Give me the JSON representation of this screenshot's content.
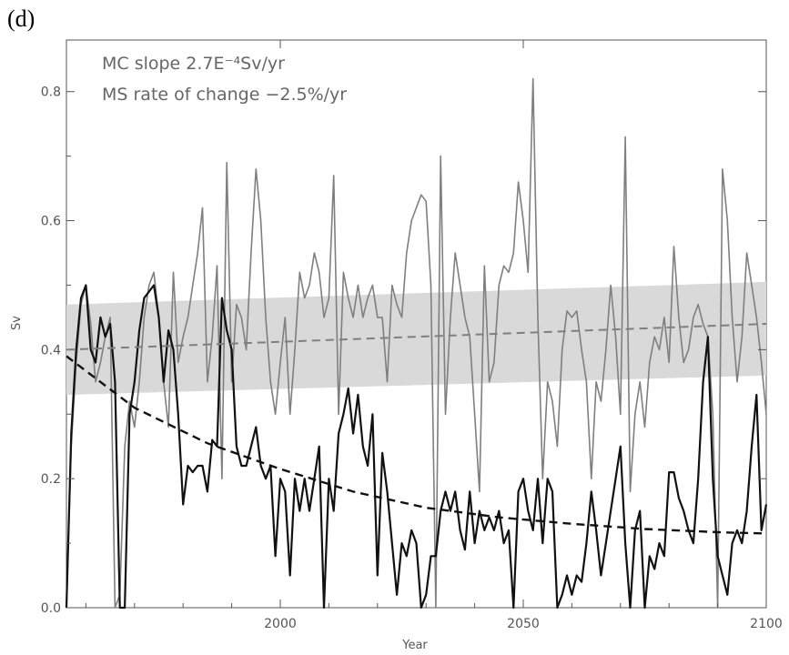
{
  "panel_label": "(d)",
  "colors": {
    "band": "#d9d9d9",
    "gray_series": "#7f7f7f",
    "black_series": "#111111",
    "axis": "#555555"
  },
  "chart_data": {
    "type": "line",
    "xlabel": "Year",
    "ylabel": "Sv",
    "xlim": [
      1956,
      2100
    ],
    "ylim": [
      0.0,
      0.88
    ],
    "x_ticks": [
      2000,
      2050,
      2100
    ],
    "y_ticks": [
      0.0,
      0.2,
      0.4,
      0.6,
      0.8
    ],
    "x_tick_labels": [
      "2000",
      "2050",
      "2100"
    ],
    "y_tick_labels": [
      "0.0",
      "0.2",
      "0.4",
      "0.6",
      "0.8"
    ],
    "annotations": [
      "MC slope 2.7E⁻⁴Sv/yr",
      "MS rate of change −2.5%/yr"
    ],
    "band": {
      "x": [
        1956,
        2100
      ],
      "lower": [
        0.33,
        0.36
      ],
      "upper": [
        0.47,
        0.505
      ]
    },
    "trend_lines": [
      {
        "style": "dashed",
        "color": "gray",
        "x": [
          1956,
          2100
        ],
        "y": [
          0.4,
          0.44
        ]
      },
      {
        "style": "dashed",
        "color": "black",
        "x": [
          1956,
          1970,
          1985,
          2000,
          2015,
          2030,
          2045,
          2060,
          2075,
          2090,
          2100
        ],
        "y": [
          0.39,
          0.31,
          0.255,
          0.215,
          0.18,
          0.155,
          0.14,
          0.13,
          0.122,
          0.117,
          0.115
        ]
      }
    ],
    "series": [
      {
        "color": "gray",
        "x": [
          1956,
          1957,
          1958,
          1959,
          1960,
          1961,
          1962,
          1963,
          1964,
          1965,
          1966,
          1967,
          1968,
          1969,
          1970,
          1971,
          1972,
          1973,
          1974,
          1975,
          1976,
          1977,
          1978,
          1979,
          1980,
          1981,
          1982,
          1983,
          1984,
          1985,
          1986,
          1987,
          1988,
          1989,
          1990,
          1991,
          1992,
          1993,
          1994,
          1995,
          1996,
          1997,
          1998,
          1999,
          2000,
          2001,
          2002,
          2003,
          2004,
          2005,
          2006,
          2007,
          2008,
          2009,
          2010,
          2011,
          2012,
          2013,
          2014,
          2015,
          2016,
          2017,
          2018,
          2019,
          2020,
          2021,
          2022,
          2023,
          2024,
          2025,
          2026,
          2027,
          2028,
          2029,
          2030,
          2031,
          2032,
          2033,
          2034,
          2035,
          2036,
          2037,
          2038,
          2039,
          2040,
          2041,
          2042,
          2043,
          2044,
          2045,
          2046,
          2047,
          2048,
          2049,
          2050,
          2051,
          2052,
          2053,
          2054,
          2055,
          2056,
          2057,
          2058,
          2059,
          2060,
          2061,
          2062,
          2063,
          2064,
          2065,
          2066,
          2067,
          2068,
          2069,
          2070,
          2071,
          2072,
          2073,
          2074,
          2075,
          2076,
          2077,
          2078,
          2079,
          2080,
          2081,
          2082,
          2083,
          2084,
          2085,
          2086,
          2087,
          2088,
          2089,
          2090,
          2091,
          2092,
          2093,
          2094,
          2095,
          2096,
          2097,
          2098,
          2099,
          2100
        ],
        "y": [
          0.0,
          0.25,
          0.38,
          0.47,
          0.5,
          0.44,
          0.35,
          0.38,
          0.42,
          0.45,
          0.0,
          0.02,
          0.25,
          0.32,
          0.28,
          0.35,
          0.45,
          0.5,
          0.52,
          0.45,
          0.35,
          0.28,
          0.52,
          0.38,
          0.42,
          0.45,
          0.5,
          0.55,
          0.62,
          0.35,
          0.42,
          0.53,
          0.2,
          0.69,
          0.35,
          0.47,
          0.45,
          0.4,
          0.55,
          0.68,
          0.6,
          0.45,
          0.35,
          0.3,
          0.38,
          0.45,
          0.3,
          0.4,
          0.52,
          0.48,
          0.5,
          0.55,
          0.52,
          0.45,
          0.48,
          0.67,
          0.3,
          0.52,
          0.48,
          0.45,
          0.5,
          0.45,
          0.48,
          0.5,
          0.45,
          0.45,
          0.35,
          0.5,
          0.47,
          0.45,
          0.55,
          0.6,
          0.62,
          0.64,
          0.63,
          0.5,
          0.0,
          0.7,
          0.3,
          0.45,
          0.55,
          0.5,
          0.45,
          0.42,
          0.3,
          0.18,
          0.53,
          0.35,
          0.38,
          0.5,
          0.53,
          0.52,
          0.55,
          0.66,
          0.6,
          0.52,
          0.82,
          0.45,
          0.2,
          0.35,
          0.32,
          0.25,
          0.4,
          0.46,
          0.45,
          0.46,
          0.4,
          0.35,
          0.2,
          0.35,
          0.32,
          0.4,
          0.5,
          0.42,
          0.3,
          0.73,
          0.18,
          0.3,
          0.35,
          0.28,
          0.38,
          0.42,
          0.4,
          0.45,
          0.38,
          0.56,
          0.45,
          0.38,
          0.4,
          0.45,
          0.47,
          0.44,
          0.42,
          0.3,
          0.0,
          0.68,
          0.6,
          0.45,
          0.35,
          0.42,
          0.55,
          0.5,
          0.45,
          0.38,
          0.3
        ]
      },
      {
        "color": "black",
        "x": [
          1956,
          1957,
          1958,
          1959,
          1960,
          1961,
          1962,
          1963,
          1964,
          1965,
          1966,
          1967,
          1968,
          1969,
          1970,
          1971,
          1972,
          1973,
          1974,
          1975,
          1976,
          1977,
          1978,
          1979,
          1980,
          1981,
          1982,
          1983,
          1984,
          1985,
          1986,
          1987,
          1988,
          1989,
          1990,
          1991,
          1992,
          1993,
          1994,
          1995,
          1996,
          1997,
          1998,
          1999,
          2000,
          2001,
          2002,
          2003,
          2004,
          2005,
          2006,
          2007,
          2008,
          2009,
          2010,
          2011,
          2012,
          2013,
          2014,
          2015,
          2016,
          2017,
          2018,
          2019,
          2020,
          2021,
          2022,
          2023,
          2024,
          2025,
          2026,
          2027,
          2028,
          2029,
          2030,
          2031,
          2032,
          2033,
          2034,
          2035,
          2036,
          2037,
          2038,
          2039,
          2040,
          2041,
          2042,
          2043,
          2044,
          2045,
          2046,
          2047,
          2048,
          2049,
          2050,
          2051,
          2052,
          2053,
          2054,
          2055,
          2056,
          2057,
          2058,
          2059,
          2060,
          2061,
          2062,
          2063,
          2064,
          2065,
          2066,
          2067,
          2068,
          2069,
          2070,
          2071,
          2072,
          2073,
          2074,
          2075,
          2076,
          2077,
          2078,
          2079,
          2080,
          2081,
          2082,
          2083,
          2084,
          2085,
          2086,
          2087,
          2088,
          2089,
          2090,
          2091,
          2092,
          2093,
          2094,
          2095,
          2096,
          2097,
          2098,
          2099,
          2100
        ],
        "y": [
          0.0,
          0.27,
          0.4,
          0.48,
          0.5,
          0.4,
          0.38,
          0.45,
          0.42,
          0.44,
          0.35,
          0.0,
          0.0,
          0.3,
          0.35,
          0.43,
          0.48,
          0.49,
          0.5,
          0.45,
          0.35,
          0.43,
          0.4,
          0.3,
          0.16,
          0.22,
          0.21,
          0.22,
          0.22,
          0.18,
          0.26,
          0.25,
          0.48,
          0.43,
          0.4,
          0.25,
          0.22,
          0.22,
          0.25,
          0.28,
          0.22,
          0.2,
          0.22,
          0.08,
          0.2,
          0.18,
          0.05,
          0.2,
          0.15,
          0.2,
          0.15,
          0.2,
          0.25,
          0.0,
          0.2,
          0.15,
          0.27,
          0.3,
          0.34,
          0.27,
          0.33,
          0.25,
          0.22,
          0.3,
          0.05,
          0.24,
          0.18,
          0.1,
          0.02,
          0.1,
          0.08,
          0.12,
          0.1,
          0.0,
          0.02,
          0.08,
          0.08,
          0.15,
          0.18,
          0.15,
          0.18,
          0.12,
          0.09,
          0.18,
          0.1,
          0.15,
          0.12,
          0.14,
          0.12,
          0.15,
          0.1,
          0.12,
          0.0,
          0.18,
          0.2,
          0.15,
          0.12,
          0.2,
          0.1,
          0.2,
          0.18,
          0.0,
          0.02,
          0.05,
          0.02,
          0.05,
          0.04,
          0.1,
          0.18,
          0.12,
          0.05,
          0.1,
          0.15,
          0.2,
          0.25,
          0.1,
          0.0,
          0.12,
          0.15,
          0.0,
          0.08,
          0.06,
          0.1,
          0.08,
          0.21,
          0.21,
          0.17,
          0.15,
          0.12,
          0.1,
          0.2,
          0.35,
          0.42,
          0.2,
          0.08,
          0.05,
          0.02,
          0.1,
          0.12,
          0.1,
          0.15,
          0.25,
          0.33,
          0.12,
          0.16
        ]
      }
    ]
  }
}
